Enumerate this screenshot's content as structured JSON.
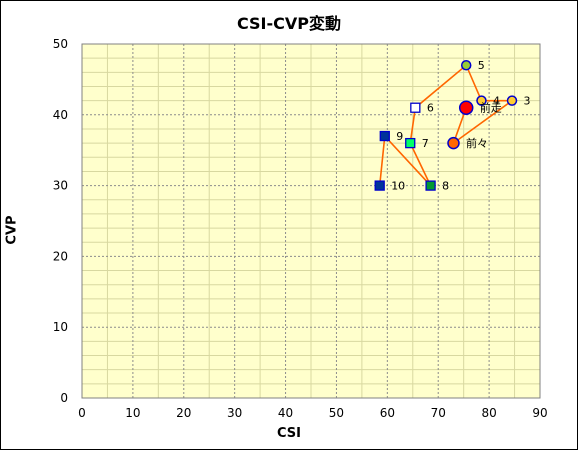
{
  "chart_data": {
    "type": "scatter",
    "title": "CSI-CVP変動",
    "xlabel": "CSI",
    "ylabel": "CVP",
    "xlim": [
      0,
      90
    ],
    "ylim": [
      0,
      50
    ],
    "xticks": [
      0,
      10,
      20,
      30,
      40,
      50,
      60,
      70,
      80,
      90
    ],
    "yticks": [
      0,
      10,
      20,
      30,
      40,
      50
    ],
    "grid": true,
    "legend": "none",
    "background": "#ffffcc",
    "line_color": "#ff6600",
    "path_order": [
      "前走",
      "前々",
      "3",
      "4",
      "5",
      "6",
      "7",
      "8",
      "9",
      "10"
    ],
    "points": [
      {
        "label": "前走",
        "x": 75.5,
        "y": 41,
        "marker": "circle",
        "size": "large",
        "fill": "#ff0000",
        "stroke": "#0000cc"
      },
      {
        "label": "前々",
        "x": 73,
        "y": 36,
        "marker": "circle",
        "size": "medium",
        "fill": "#ff6600",
        "stroke": "#0000cc"
      },
      {
        "label": "3",
        "x": 84.5,
        "y": 42,
        "marker": "circle",
        "size": "small",
        "fill": "#ffcc33",
        "stroke": "#0000cc"
      },
      {
        "label": "4",
        "x": 78.5,
        "y": 42,
        "marker": "circle",
        "size": "small",
        "fill": "#ffcc33",
        "stroke": "#0000cc"
      },
      {
        "label": "5",
        "x": 75.5,
        "y": 47,
        "marker": "circle",
        "size": "small",
        "fill": "#99cc33",
        "stroke": "#0000cc"
      },
      {
        "label": "6",
        "x": 65.5,
        "y": 41,
        "marker": "square",
        "size": "small",
        "fill": "#ffffff",
        "stroke": "#0000cc"
      },
      {
        "label": "7",
        "x": 64.5,
        "y": 36,
        "marker": "square",
        "size": "small",
        "fill": "#00ff66",
        "stroke": "#0000cc"
      },
      {
        "label": "8",
        "x": 68.5,
        "y": 30,
        "marker": "square",
        "size": "small",
        "fill": "#009933",
        "stroke": "#0000cc"
      },
      {
        "label": "9",
        "x": 59.5,
        "y": 37,
        "marker": "square",
        "size": "small",
        "fill": "#003399",
        "stroke": "#0000cc"
      },
      {
        "label": "10",
        "x": 58.5,
        "y": 30,
        "marker": "square",
        "size": "small",
        "fill": "#003399",
        "stroke": "#0000cc"
      }
    ]
  }
}
